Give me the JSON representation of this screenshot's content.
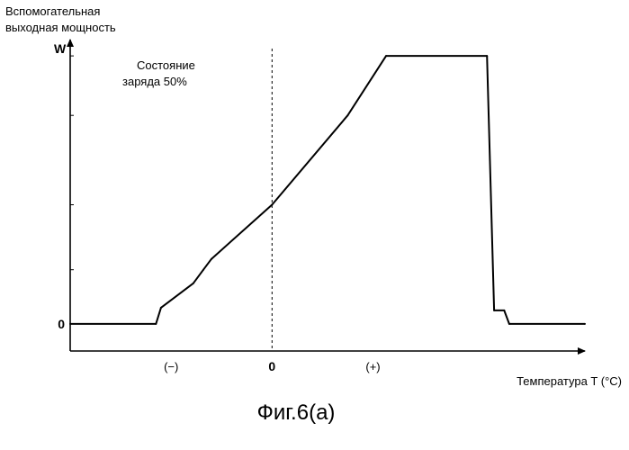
{
  "chart_data": {
    "type": "line",
    "ylabel_lines": [
      "Вспомогательная",
      "выходная мощность"
    ],
    "y_axis_symbol": "W",
    "y_zero_label": "0",
    "xlabel": "Температура T (°C)",
    "x_tick_labels": [
      {
        "x": -1,
        "label": "(−)"
      },
      {
        "x": 0,
        "label": "0"
      },
      {
        "x": 1,
        "label": "(+)"
      }
    ],
    "annotation_lines": [
      "Состояние",
      "заряда 50%"
    ],
    "caption": "Фиг.6(a)",
    "xlim": [
      -2.0,
      3.1
    ],
    "ylim": [
      -0.1,
      1.05
    ],
    "grid": false,
    "reference_line": {
      "x": 0,
      "style": "dashed"
    },
    "series": [
      {
        "x": [
          -2.0,
          -1.15,
          -1.1,
          -0.78,
          -0.68,
          -0.6,
          0.0,
          0.75,
          1.13,
          2.13,
          2.2,
          2.3,
          2.35,
          3.1
        ],
        "y": [
          0.0,
          0.0,
          0.06,
          0.15,
          0.2,
          0.24,
          0.44,
          0.77,
          0.99,
          0.99,
          0.05,
          0.05,
          0.0,
          0.0
        ]
      }
    ]
  }
}
